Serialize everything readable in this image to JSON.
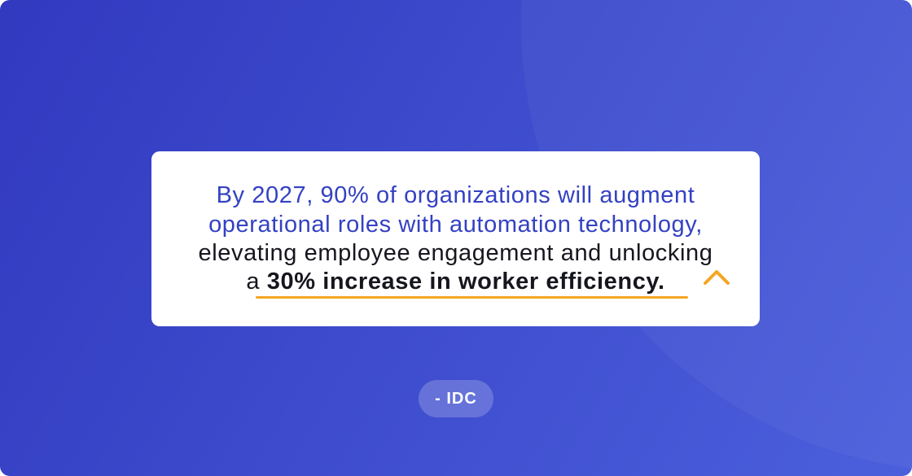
{
  "quote": {
    "lead": [
      "By 2027, 90% of organizations will augment",
      "operational roles with automation technology,"
    ],
    "body": "elevating employee engagement and unlocking",
    "connector": "a",
    "emphasis": "30% increase in worker efficiency."
  },
  "attribution": "- IDC"
}
